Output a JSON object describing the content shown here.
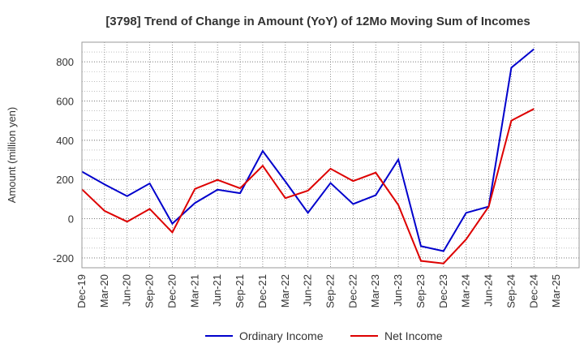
{
  "chart_data": {
    "type": "line",
    "title": "[3798]  Trend of Change in Amount (YoY) of 12Mo Moving Sum of Incomes",
    "xlabel": "",
    "ylabel": "Amount (million yen)",
    "ylim": [
      -250,
      900
    ],
    "yticks": [
      -200,
      0,
      200,
      400,
      600,
      800
    ],
    "grid": true,
    "legend_position": "bottom",
    "categories": [
      "Dec-19",
      "Mar-20",
      "Jun-20",
      "Sep-20",
      "Dec-20",
      "Mar-21",
      "Jun-21",
      "Sep-21",
      "Dec-21",
      "Mar-22",
      "Jun-22",
      "Sep-22",
      "Dec-22",
      "Mar-23",
      "Jun-23",
      "Sep-23",
      "Dec-23",
      "Mar-24",
      "Jun-24",
      "Sep-24",
      "Dec-24",
      "Mar-25"
    ],
    "series": [
      {
        "name": "Ordinary Income",
        "color": "#0000cc",
        "values": [
          240,
          175,
          115,
          180,
          -25,
          80,
          148,
          130,
          345,
          190,
          30,
          182,
          75,
          120,
          302,
          -140,
          -165,
          30,
          62,
          770,
          865,
          null
        ]
      },
      {
        "name": "Net Income",
        "color": "#dd0000",
        "values": [
          150,
          40,
          -15,
          50,
          -70,
          152,
          198,
          155,
          270,
          105,
          143,
          255,
          192,
          235,
          70,
          -215,
          -228,
          -105,
          62,
          500,
          560,
          null
        ]
      }
    ]
  }
}
